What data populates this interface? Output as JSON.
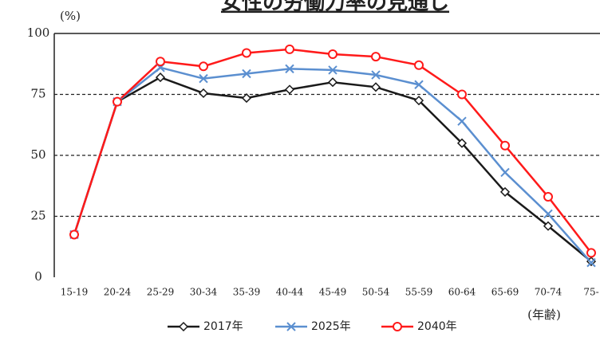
{
  "chart_data": {
    "type": "line",
    "title": "女性の労働力率の見通し",
    "y_label": "(%)",
    "x_label": "(年齢)",
    "categories": [
      "15-19",
      "20-24",
      "25-29",
      "30-34",
      "35-39",
      "40-44",
      "45-49",
      "50-54",
      "55-59",
      "60-64",
      "65-69",
      "70-74",
      "75-"
    ],
    "series": [
      {
        "name": "2017年",
        "color": "#1a1a1a",
        "marker": "diamond",
        "values": [
          17.5,
          72,
          82,
          75.5,
          73.5,
          77,
          80,
          78,
          72.5,
          55,
          35,
          21,
          6.5
        ]
      },
      {
        "name": "2025年",
        "color": "#5b8fd0",
        "marker": "x",
        "values": [
          17.5,
          72,
          86,
          81.5,
          83.5,
          85.5,
          85,
          83,
          79,
          64,
          43,
          26,
          6
        ]
      },
      {
        "name": "2040年",
        "color": "#ff1a1a",
        "marker": "circle",
        "values": [
          17.5,
          72,
          88.5,
          86.5,
          92,
          93.5,
          91.5,
          90.5,
          87,
          75,
          54,
          33,
          10
        ]
      }
    ],
    "ylim": [
      0,
      100
    ],
    "yticks": [
      0,
      25,
      50,
      75,
      100
    ],
    "grid": true,
    "legend": "bottom"
  }
}
